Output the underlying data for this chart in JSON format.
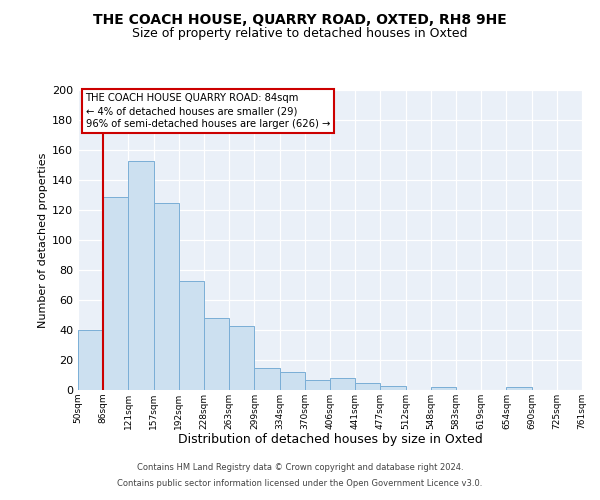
{
  "title1": "THE COACH HOUSE, QUARRY ROAD, OXTED, RH8 9HE",
  "title2": "Size of property relative to detached houses in Oxted",
  "xlabel": "Distribution of detached houses by size in Oxted",
  "ylabel": "Number of detached properties",
  "bar_values": [
    40,
    129,
    153,
    125,
    73,
    48,
    43,
    15,
    12,
    7,
    8,
    5,
    3,
    0,
    2,
    0,
    0,
    2,
    0,
    0
  ],
  "bin_labels": [
    "50sqm",
    "86sqm",
    "121sqm",
    "157sqm",
    "192sqm",
    "228sqm",
    "263sqm",
    "299sqm",
    "334sqm",
    "370sqm",
    "406sqm",
    "441sqm",
    "477sqm",
    "512sqm",
    "548sqm",
    "583sqm",
    "619sqm",
    "654sqm",
    "690sqm",
    "725sqm",
    "761sqm"
  ],
  "bar_color": "#cce0f0",
  "bar_edge_color": "#7aaed6",
  "vline_x": 1.0,
  "annotation_box_text": "THE COACH HOUSE QUARRY ROAD: 84sqm\n← 4% of detached houses are smaller (29)\n96% of semi-detached houses are larger (626) →",
  "vline_color": "#cc0000",
  "ylim": [
    0,
    200
  ],
  "yticks": [
    0,
    20,
    40,
    60,
    80,
    100,
    120,
    140,
    160,
    180,
    200
  ],
  "footer1": "Contains HM Land Registry data © Crown copyright and database right 2024.",
  "footer2": "Contains public sector information licensed under the Open Government Licence v3.0.",
  "bg_color": "#eaf0f8",
  "grid_color": "#ffffff",
  "title1_fontsize": 10,
  "title2_fontsize": 9,
  "xlabel_fontsize": 9,
  "ylabel_fontsize": 8
}
